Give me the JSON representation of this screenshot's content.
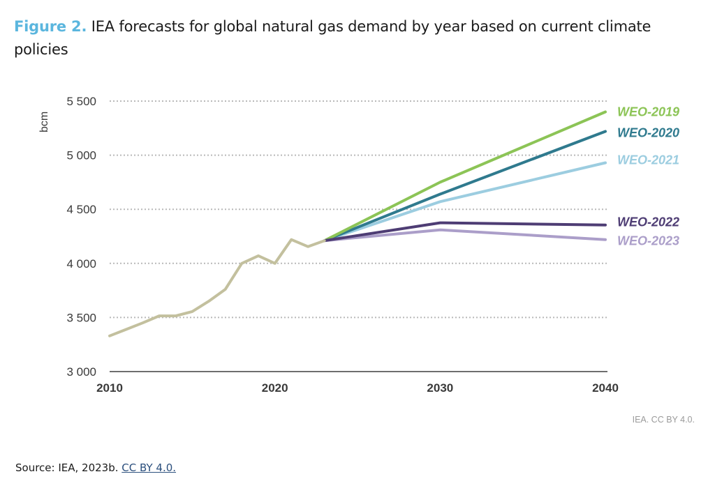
{
  "caption": {
    "figure_label": "Figure 2.",
    "text": " IEA forecasts for global natural gas demand by year based on current climate policies"
  },
  "source": {
    "prefix": "Source: IEA, 2023b. ",
    "link_text": "CC BY 4.0."
  },
  "colors": {
    "figure_label": "#5bb6de",
    "historical": "#c3c09e",
    "grid": "#b9b9b9",
    "axis": "#6e6e6e"
  },
  "chart_data": {
    "type": "line",
    "title": "IEA forecasts for global natural gas demand by year based on current climate policies",
    "xlabel": "",
    "ylabel": "bcm",
    "xlim": [
      2010,
      2040
    ],
    "ylim": [
      3000,
      5500
    ],
    "x_ticks": [
      2010,
      2020,
      2030,
      2040
    ],
    "x_tick_labels": [
      "2010",
      "2020",
      "2030",
      "2040"
    ],
    "y_ticks": [
      3000,
      3500,
      4000,
      4500,
      5000,
      5500
    ],
    "y_tick_labels": [
      "3 000",
      "3 500",
      "4 000",
      "4 500",
      "5 000",
      "5 500"
    ],
    "grid": "horizontal dotted",
    "legend": "right (inline labels at line ends)",
    "credit": "IEA. CC BY 4.0.",
    "series": [
      {
        "name": "Historical",
        "color": "#c3c09e",
        "x": [
          2010,
          2011,
          2012,
          2013,
          2014,
          2015,
          2016,
          2017,
          2018,
          2019,
          2020,
          2021,
          2022,
          2023
        ],
        "values": [
          3330,
          3390,
          3450,
          3515,
          3515,
          3555,
          3650,
          3760,
          4000,
          4070,
          4000,
          4220,
          4155,
          4210
        ],
        "label": ""
      },
      {
        "name": "WEO-2019",
        "color": "#8cc456",
        "x": [
          2023,
          2030,
          2040
        ],
        "values": [
          4210,
          4750,
          5400
        ],
        "label": "WEO-2019"
      },
      {
        "name": "WEO-2020",
        "color": "#2f7a8e",
        "x": [
          2023,
          2030,
          2040
        ],
        "values": [
          4210,
          4640,
          5220
        ],
        "label": "WEO-2020"
      },
      {
        "name": "WEO-2021",
        "color": "#9ccde0",
        "x": [
          2023,
          2030,
          2040
        ],
        "values": [
          4210,
          4570,
          4930
        ],
        "label": "WEO-2021"
      },
      {
        "name": "WEO-2022",
        "color": "#4e3d74",
        "x": [
          2023,
          2030,
          2040
        ],
        "values": [
          4210,
          4375,
          4355
        ],
        "label": "WEO-2022"
      },
      {
        "name": "WEO-2023",
        "color": "#ab9ec9",
        "x": [
          2023,
          2030,
          2040
        ],
        "values": [
          4210,
          4310,
          4220
        ],
        "label": "WEO-2023"
      }
    ]
  }
}
